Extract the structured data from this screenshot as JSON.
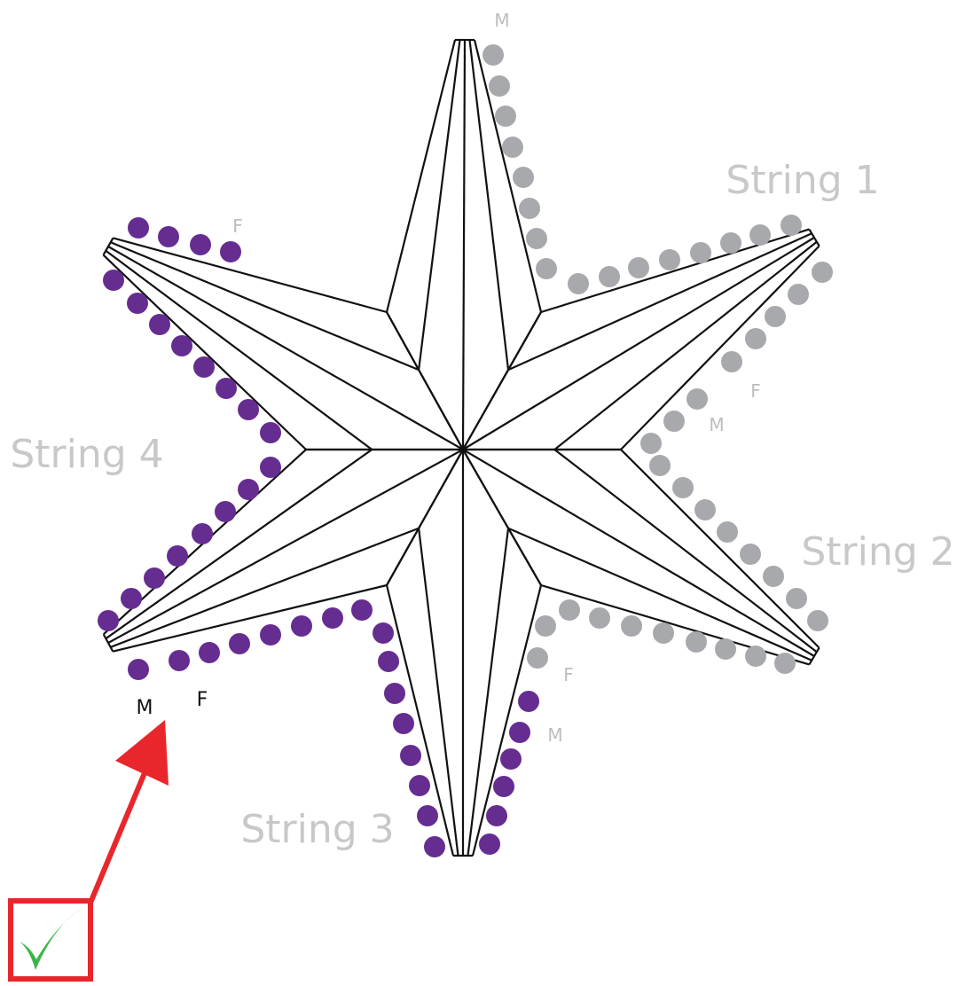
{
  "labels": {
    "top_m": "M",
    "string1": "String 1",
    "string2": "String 2",
    "string3": "String 3",
    "string4": "String 4",
    "ul_f": "F",
    "right_f": "F",
    "right_m": "M",
    "lr_f": "F",
    "bottom_m": "M",
    "ll_m": "M",
    "ll_f": "F"
  }
}
